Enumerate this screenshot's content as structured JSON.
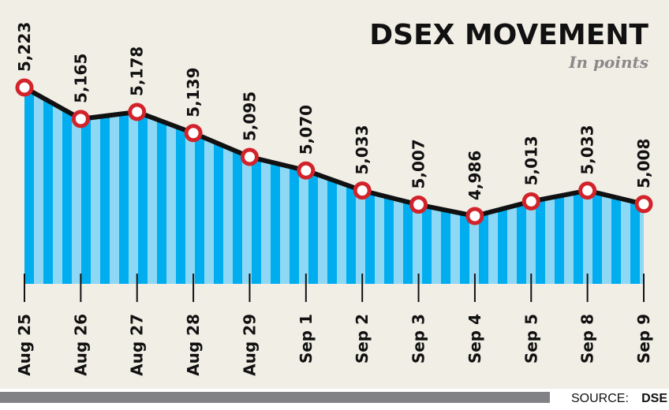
{
  "chart_data": {
    "type": "area",
    "title": "DSEX MOVEMENT",
    "subtitle": "In points",
    "categories": [
      "Aug 25",
      "Aug 26",
      "Aug 27",
      "Aug 28",
      "Aug 29",
      "Sep 1",
      "Sep 2",
      "Sep 3",
      "Sep 4",
      "Sep 5",
      "Sep 8",
      "Sep 9"
    ],
    "values": [
      5223,
      5165,
      5178,
      5139,
      5095,
      5070,
      5033,
      5007,
      4986,
      5013,
      5033,
      5008
    ],
    "value_labels": [
      "5,223",
      "5,165",
      "5,178",
      "5,139",
      "5,095",
      "5,070",
      "5,033",
      "5,007",
      "4,986",
      "5,013",
      "5,033",
      "5,008"
    ],
    "xlabel": "",
    "ylabel": "",
    "ylim": [
      4750,
      5223
    ],
    "grid": false,
    "source_label": "SOURCE:",
    "source_name": "DSE"
  },
  "colors": {
    "background": "#f1eee6",
    "stripe_dark": "#00aeef",
    "stripe_light": "#8fd8f5",
    "line": "#111111",
    "marker": "#d2232a",
    "footer_bar": "#808285"
  }
}
